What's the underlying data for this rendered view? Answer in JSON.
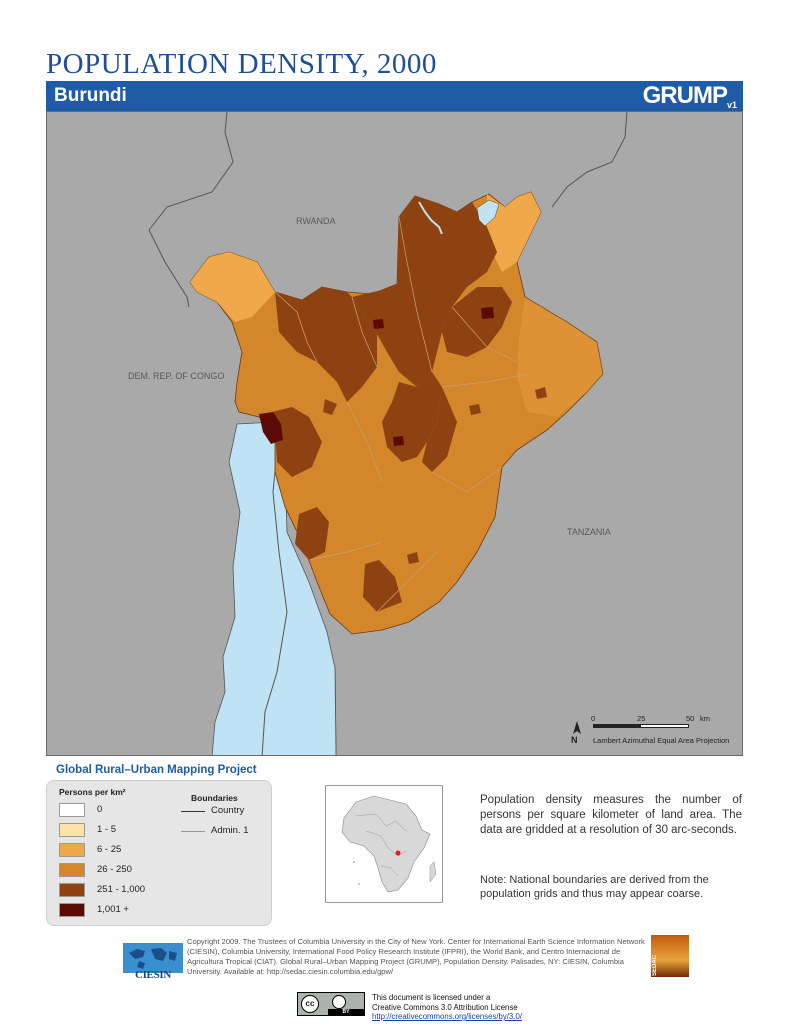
{
  "header": {
    "title": "POPULATION DENSITY, 2000",
    "country": "Burundi",
    "brand": "GRUMP",
    "brand_version": "v1"
  },
  "map": {
    "place_labels": {
      "rwanda": "RWANDA",
      "drc": "DEM. REP. OF CONGO",
      "tanzania": "TANZANIA"
    },
    "north_label": "N",
    "scale": {
      "ticks": [
        "0",
        "25",
        "50"
      ],
      "unit": "km"
    },
    "projection": "Lambert Azimuthal Equal Area Projection",
    "colors": {
      "background": "#a9a9a9",
      "water": "#bfe3f5",
      "class_6_25": "#f0a94a",
      "class_26_250": "#d4862a",
      "class_251_1000": "#8e4212",
      "class_1001_plus": "#5c0b04"
    }
  },
  "legend": {
    "project_title": "Global Rural–Urban Mapping Project",
    "persons_header": "Persons per km²",
    "classes": [
      {
        "label": "0",
        "color": "#ffffff"
      },
      {
        "label": "1 - 5",
        "color": "#fde3a7"
      },
      {
        "label": "6 - 25",
        "color": "#f0a94a"
      },
      {
        "label": "26 - 250",
        "color": "#d4862a"
      },
      {
        "label": "251 - 1,000",
        "color": "#8e4212"
      },
      {
        "label": "1,001 +",
        "color": "#5c0b04"
      }
    ],
    "boundaries_header": "Boundaries",
    "boundaries": [
      "Country",
      "Admin. 1"
    ]
  },
  "description": "Population density measures the number of persons per square kilometer of land area. The data are gridded at a resolution of 30 arc-seconds.",
  "note": "Note: National boundaries are derived from the population grids and thus may appear coarse.",
  "footer": {
    "org_name": "CIESIN",
    "sedac_name": "SEDAC",
    "copyright": "Copyright 2009. The Trustees of Columbia University in the City of New York. Center for International Earth Science Information Network (CIESIN), Columbia University, International Food Policy Research Institute (IFPRI), the World Bank, and Centro Internacional de Agricultura Tropical (CIAT). Global Rural–Urban Mapping Project (GRUMP), Population Density. Palisades, NY: CIESIN, Columbia University. Available at: http://sedac.ciesin.columbia.edu/gpw/",
    "cc_badge": "cc",
    "cc_by": "BY",
    "license_line1": "This document is licensed under a",
    "license_line2": "Creative Commons 3.0 Attribution License",
    "license_url": "http://creativecommons.org/licenses/by/3.0/"
  }
}
